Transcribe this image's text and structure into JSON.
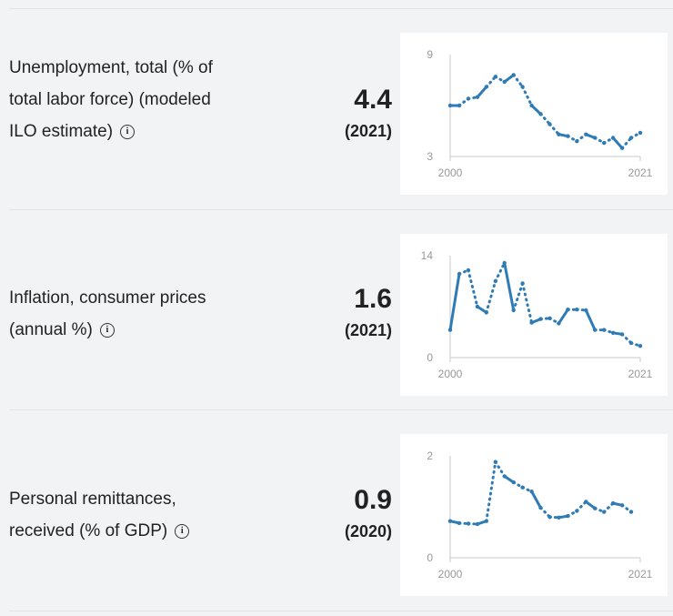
{
  "indicators": [
    {
      "label": "Unemployment, total (% of total labor force) (modeled ILO estimate)",
      "value": "4.4",
      "year": "(2021)"
    },
    {
      "label": "Inflation, consumer prices (annual %)",
      "value": "1.6",
      "year": "(2021)"
    },
    {
      "label": "Personal remittances, received (% of GDP)",
      "value": "0.9",
      "year": "(2020)"
    }
  ],
  "chart_data": [
    {
      "type": "line",
      "x": [
        2000,
        2001,
        2002,
        2003,
        2004,
        2005,
        2006,
        2007,
        2008,
        2009,
        2010,
        2011,
        2012,
        2013,
        2014,
        2015,
        2016,
        2017,
        2018,
        2019,
        2020,
        2021
      ],
      "values": [
        6.0,
        6.0,
        6.4,
        6.5,
        7.1,
        7.7,
        7.4,
        7.8,
        7.1,
        6.0,
        5.5,
        4.9,
        4.3,
        4.2,
        3.9,
        4.3,
        4.1,
        3.8,
        4.1,
        3.5,
        4.1,
        4.4
      ],
      "ylim": [
        3,
        9
      ],
      "yticks": [
        "9",
        "3"
      ],
      "xticks": [
        "2000",
        "2021"
      ],
      "color": "#2f7bb5"
    },
    {
      "type": "line",
      "x": [
        2000,
        2001,
        2002,
        2003,
        2004,
        2005,
        2006,
        2007,
        2008,
        2009,
        2010,
        2011,
        2012,
        2013,
        2014,
        2015,
        2016,
        2017,
        2018,
        2019,
        2020,
        2021
      ],
      "values": [
        3.8,
        11.5,
        12.0,
        7.0,
        6.2,
        10.5,
        13.0,
        6.5,
        10.2,
        4.8,
        5.3,
        5.4,
        4.7,
        6.6,
        6.6,
        6.5,
        3.8,
        3.8,
        3.4,
        3.2,
        2.0,
        1.6
      ],
      "ylim": [
        0,
        14
      ],
      "yticks": [
        "14",
        "0"
      ],
      "xticks": [
        "2000",
        "2021"
      ],
      "color": "#2f7bb5"
    },
    {
      "type": "line",
      "x": [
        2000,
        2001,
        2002,
        2003,
        2004,
        2005,
        2006,
        2007,
        2008,
        2009,
        2010,
        2011,
        2012,
        2013,
        2014,
        2015,
        2016,
        2017,
        2018,
        2019,
        2020
      ],
      "values": [
        0.72,
        0.68,
        0.67,
        0.66,
        0.72,
        1.88,
        1.6,
        1.48,
        1.38,
        1.3,
        0.98,
        0.8,
        0.79,
        0.82,
        0.92,
        1.1,
        0.97,
        0.9,
        1.07,
        1.03,
        0.9
      ],
      "ylim": [
        0,
        2
      ],
      "yticks": [
        "2",
        "0"
      ],
      "xticks": [
        "2000",
        "2021"
      ],
      "color": "#2f7bb5"
    }
  ]
}
